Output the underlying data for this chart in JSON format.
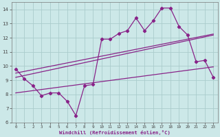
{
  "xlabel": "Windchill (Refroidissement éolien,°C)",
  "background_color": "#cce8e8",
  "grid_color": "#aacccc",
  "line_color": "#882288",
  "x": [
    0,
    1,
    2,
    3,
    4,
    5,
    6,
    7,
    8,
    9,
    10,
    11,
    12,
    13,
    14,
    15,
    16,
    17,
    18,
    19,
    20,
    21,
    22,
    23
  ],
  "y_main": [
    9.8,
    9.1,
    8.6,
    7.9,
    8.1,
    8.1,
    7.5,
    6.5,
    8.6,
    8.7,
    11.9,
    11.9,
    12.3,
    12.5,
    13.4,
    12.5,
    13.2,
    14.1,
    14.1,
    12.8,
    12.2,
    10.3,
    10.4,
    9.2
  ],
  "reg_upper1": [
    9.5,
    9.62,
    9.74,
    9.86,
    9.98,
    10.1,
    10.22,
    10.34,
    10.46,
    10.58,
    10.7,
    10.82,
    10.94,
    11.06,
    11.18,
    11.3,
    11.42,
    11.54,
    11.66,
    11.78,
    11.9,
    12.02,
    12.14,
    12.26
  ],
  "reg_upper2": [
    9.2,
    9.33,
    9.46,
    9.59,
    9.72,
    9.85,
    9.98,
    10.11,
    10.24,
    10.37,
    10.5,
    10.63,
    10.76,
    10.89,
    11.02,
    11.15,
    11.28,
    11.41,
    11.54,
    11.67,
    11.8,
    11.93,
    12.06,
    12.19
  ],
  "reg_lower": [
    8.1,
    8.18,
    8.26,
    8.34,
    8.42,
    8.5,
    8.58,
    8.66,
    8.74,
    8.82,
    8.9,
    8.98,
    9.06,
    9.14,
    9.22,
    9.3,
    9.38,
    9.46,
    9.54,
    9.62,
    9.7,
    9.78,
    9.86,
    9.94
  ],
  "ylim": [
    6,
    14.5
  ],
  "yticks": [
    6,
    7,
    8,
    9,
    10,
    11,
    12,
    13,
    14
  ],
  "xlim": [
    -0.5,
    23.5
  ]
}
